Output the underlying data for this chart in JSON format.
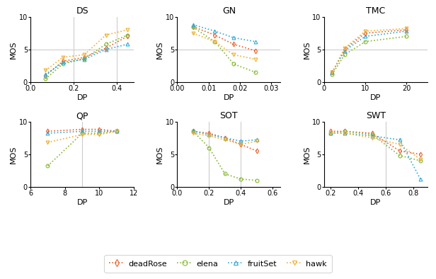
{
  "title_fontsize": 9,
  "axis_label_fontsize": 8,
  "tick_fontsize": 7,
  "legend_fontsize": 8,
  "colors": {
    "deadRose": "#e8602c",
    "elena": "#84b82e",
    "fruitSet": "#30aad4",
    "hawk": "#f0b030"
  },
  "subplots": {
    "DS": {
      "xlabel": "DP",
      "ylabel": "MOS",
      "xlim": [
        0,
        0.48
      ],
      "ylim": [
        0,
        10
      ],
      "xticks": [
        0,
        0.2,
        0.4
      ],
      "yticks": [
        0,
        5,
        10
      ],
      "hline": 5,
      "vlines": [
        0.2,
        0.4
      ],
      "series": {
        "deadRose": {
          "x": [
            0.07,
            0.15,
            0.25,
            0.35,
            0.45
          ],
          "y": [
            1.0,
            3.2,
            3.8,
            5.2,
            7.0
          ]
        },
        "elena": {
          "x": [
            0.07,
            0.15,
            0.25,
            0.35,
            0.45
          ],
          "y": [
            0.5,
            2.8,
            3.6,
            5.8,
            7.2
          ]
        },
        "fruitSet": {
          "x": [
            0.07,
            0.15,
            0.25,
            0.35,
            0.45
          ],
          "y": [
            1.2,
            3.0,
            3.5,
            5.0,
            5.8
          ]
        },
        "hawk": {
          "x": [
            0.07,
            0.15,
            0.25,
            0.35,
            0.45
          ],
          "y": [
            1.8,
            3.8,
            4.2,
            7.2,
            8.0
          ]
        }
      }
    },
    "GN": {
      "xlabel": "DP",
      "ylabel": "MOS",
      "xlim": [
        0,
        0.033
      ],
      "ylim": [
        0,
        10
      ],
      "xticks": [
        0,
        0.01,
        0.02,
        0.03
      ],
      "yticks": [
        0,
        5,
        10
      ],
      "hline": 5,
      "vlines": [],
      "series": {
        "deadRose": {
          "x": [
            0.005,
            0.012,
            0.018,
            0.025
          ],
          "y": [
            8.5,
            7.2,
            5.8,
            4.8
          ]
        },
        "elena": {
          "x": [
            0.005,
            0.012,
            0.018,
            0.025
          ],
          "y": [
            8.4,
            6.2,
            2.8,
            1.5
          ]
        },
        "fruitSet": {
          "x": [
            0.005,
            0.012,
            0.018,
            0.025
          ],
          "y": [
            8.8,
            7.8,
            6.8,
            6.2
          ]
        },
        "hawk": {
          "x": [
            0.005,
            0.012,
            0.018,
            0.025
          ],
          "y": [
            7.5,
            6.2,
            4.2,
            3.5
          ]
        }
      }
    },
    "TMC": {
      "xlabel": "DP",
      "ylabel": "MOS",
      "xlim": [
        0,
        25
      ],
      "ylim": [
        0,
        10
      ],
      "xticks": [
        0,
        10,
        20
      ],
      "yticks": [
        0,
        5,
        10
      ],
      "hline": 5,
      "vlines": [],
      "series": {
        "deadRose": {
          "x": [
            2,
            5,
            10,
            20
          ],
          "y": [
            1.5,
            5.0,
            7.5,
            8.0
          ]
        },
        "elena": {
          "x": [
            2,
            5,
            10,
            20
          ],
          "y": [
            1.2,
            4.2,
            6.2,
            7.0
          ]
        },
        "fruitSet": {
          "x": [
            2,
            5,
            10,
            20
          ],
          "y": [
            1.5,
            4.8,
            7.0,
            7.8
          ]
        },
        "hawk": {
          "x": [
            2,
            5,
            10,
            20
          ],
          "y": [
            1.5,
            5.2,
            7.8,
            8.2
          ]
        }
      }
    },
    "QP": {
      "xlabel": "DP",
      "ylabel": "MOS",
      "xlim": [
        6,
        12
      ],
      "ylim": [
        0,
        10
      ],
      "xticks": [
        6,
        8,
        10,
        12
      ],
      "yticks": [
        0,
        5,
        10
      ],
      "hline": null,
      "vlines": [
        9
      ],
      "series": {
        "deadRose": {
          "x": [
            7,
            9,
            10,
            11
          ],
          "y": [
            8.5,
            8.8,
            8.8,
            8.5
          ]
        },
        "elena": {
          "x": [
            7,
            9,
            10,
            11
          ],
          "y": [
            3.2,
            8.2,
            8.2,
            8.5
          ]
        },
        "fruitSet": {
          "x": [
            7,
            9,
            10,
            11
          ],
          "y": [
            8.2,
            8.5,
            8.5,
            8.5
          ]
        },
        "hawk": {
          "x": [
            7,
            9,
            10,
            11
          ],
          "y": [
            6.8,
            8.0,
            8.0,
            8.5
          ]
        }
      }
    },
    "SOT": {
      "xlabel": "DP",
      "ylabel": "MOS",
      "xlim": [
        0,
        0.65
      ],
      "ylim": [
        0,
        10
      ],
      "xticks": [
        0,
        0.2,
        0.4,
        0.6
      ],
      "yticks": [
        0,
        5,
        10
      ],
      "hline": null,
      "vlines": [
        0.2,
        0.4
      ],
      "series": {
        "deadRose": {
          "x": [
            0.1,
            0.2,
            0.3,
            0.4,
            0.5
          ],
          "y": [
            8.5,
            8.2,
            7.5,
            6.5,
            5.5
          ]
        },
        "elena": {
          "x": [
            0.1,
            0.2,
            0.3,
            0.4,
            0.5
          ],
          "y": [
            8.5,
            6.0,
            2.0,
            1.2,
            1.0
          ]
        },
        "fruitSet": {
          "x": [
            0.1,
            0.2,
            0.3,
            0.4,
            0.5
          ],
          "y": [
            8.5,
            8.0,
            7.5,
            7.0,
            7.2
          ]
        },
        "hawk": {
          "x": [
            0.1,
            0.2,
            0.3,
            0.4,
            0.5
          ],
          "y": [
            8.2,
            7.8,
            7.2,
            6.5,
            7.0
          ]
        }
      }
    },
    "SWT": {
      "xlabel": "DP",
      "ylabel": "MOS",
      "xlim": [
        0.15,
        0.9
      ],
      "ylim": [
        0,
        10
      ],
      "xticks": [
        0.2,
        0.4,
        0.6,
        0.8
      ],
      "yticks": [
        0,
        5,
        10
      ],
      "hline": null,
      "vlines": [
        0.6
      ],
      "series": {
        "deadRose": {
          "x": [
            0.2,
            0.3,
            0.5,
            0.7,
            0.85
          ],
          "y": [
            8.5,
            8.5,
            8.2,
            5.5,
            5.0
          ]
        },
        "elena": {
          "x": [
            0.2,
            0.3,
            0.5,
            0.7,
            0.85
          ],
          "y": [
            8.2,
            8.5,
            8.0,
            4.8,
            4.0
          ]
        },
        "fruitSet": {
          "x": [
            0.2,
            0.3,
            0.5,
            0.7,
            0.85
          ],
          "y": [
            8.2,
            8.2,
            7.8,
            7.2,
            1.2
          ]
        },
        "hawk": {
          "x": [
            0.2,
            0.3,
            0.5,
            0.7,
            0.85
          ],
          "y": [
            8.2,
            8.2,
            7.5,
            6.5,
            4.2
          ]
        }
      }
    }
  },
  "subplot_order": [
    "DS",
    "GN",
    "TMC",
    "QP",
    "SOT",
    "SWT"
  ],
  "markers": {
    "deadRose": "d",
    "elena": "o",
    "fruitSet": "^",
    "hawk": "v"
  },
  "linestyles": {
    "deadRose": "dotted",
    "elena": "dotted",
    "fruitSet": "dotted",
    "hawk": "dotted"
  }
}
